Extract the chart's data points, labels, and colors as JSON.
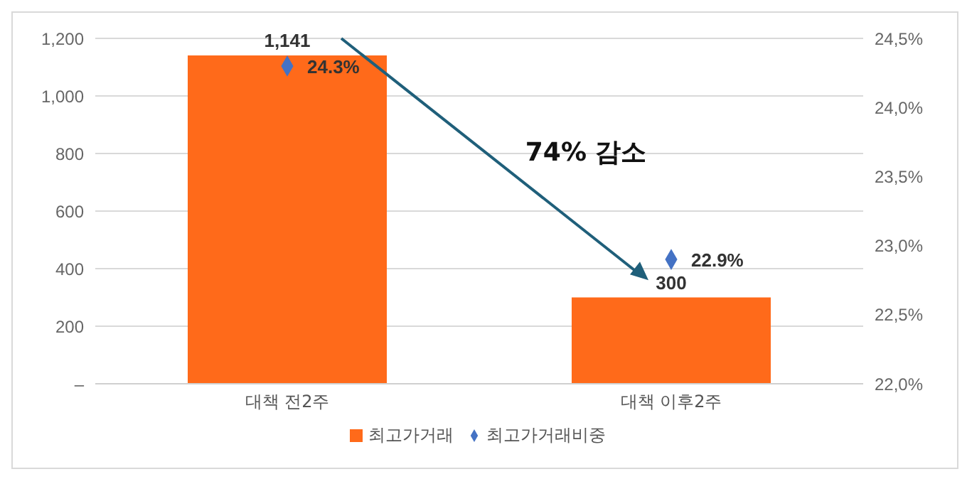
{
  "chart_data": {
    "type": "bar",
    "categories": [
      "대책 전2주",
      "대책 이후2주"
    ],
    "series": [
      {
        "name": "최고가거래",
        "color": "#ff6a1a",
        "values": [
          1141,
          300
        ],
        "value_labels": [
          "1,141",
          "300"
        ]
      },
      {
        "name": "최고가거래비중",
        "type": "scatter",
        "axis": "y2",
        "color": "#4472c4",
        "values": [
          24.3,
          22.9
        ],
        "value_labels": [
          "24.3%",
          "22.9%"
        ]
      }
    ],
    "ylim": [
      0,
      1200
    ],
    "yticks": [
      {
        "value": 0,
        "label": "–"
      },
      {
        "value": 200,
        "label": "200"
      },
      {
        "value": 400,
        "label": "400"
      },
      {
        "value": 600,
        "label": "600"
      },
      {
        "value": 800,
        "label": "800"
      },
      {
        "value": 1000,
        "label": "1,000"
      },
      {
        "value": 1200,
        "label": "1,200"
      }
    ],
    "y2lim": [
      22,
      24.5
    ],
    "y2ticks": [
      {
        "value": 22,
        "label": "22,0%"
      },
      {
        "value": 22.5,
        "label": "22,5%"
      },
      {
        "value": 23,
        "label": "23,0%"
      },
      {
        "value": 23.5,
        "label": "23,5%"
      },
      {
        "value": 24,
        "label": "24,0%"
      },
      {
        "value": 24.5,
        "label": "24,5%"
      }
    ],
    "grid": "y",
    "legend": "bottom",
    "marker": "diamond",
    "annotations": [
      "74% 감소"
    ]
  }
}
